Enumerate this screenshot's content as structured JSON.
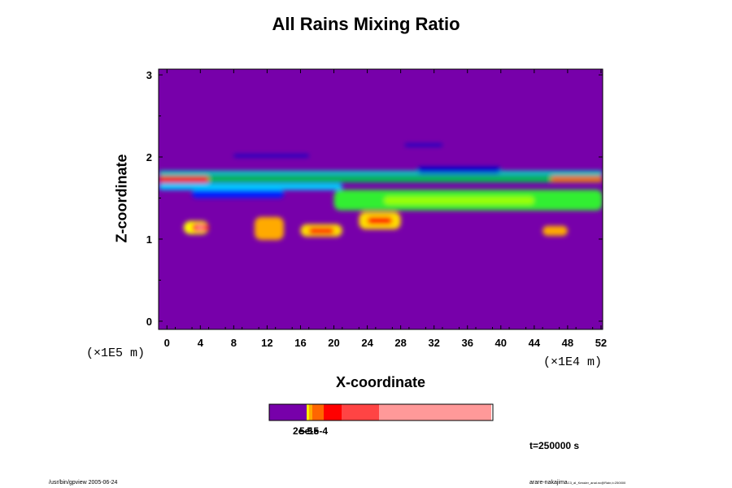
{
  "chart_data": {
    "type": "heatmap",
    "title": "All Rains Mixing Ratio",
    "xlabel": "X-coordinate",
    "ylabel": "Z-coordinate",
    "x_unit": "(×1E4 m)",
    "y_unit": "(×1E5 m)",
    "xlim": [
      -1,
      52.2
    ],
    "ylim": [
      -0.1,
      3.07
    ],
    "x_ticks": [
      "0",
      "4",
      "8",
      "12",
      "16",
      "20",
      "24",
      "28",
      "32",
      "36",
      "40",
      "44",
      "48",
      "52"
    ],
    "x_tick_values": [
      0,
      4,
      8,
      12,
      16,
      20,
      24,
      28,
      32,
      36,
      40,
      44,
      48,
      52
    ],
    "y_ticks": [
      "0",
      "1",
      "2",
      "3"
    ],
    "y_tick_values": [
      0,
      1,
      2,
      3
    ],
    "background_color": "#7700aa",
    "features": [
      {
        "x": [
          -1,
          52.2
        ],
        "y": [
          1.69,
          1.77
        ],
        "level": "#00c050"
      },
      {
        "x": [
          -1,
          5
        ],
        "y": [
          1.69,
          1.76
        ],
        "level": "#ff0000"
      },
      {
        "x": [
          46,
          52.2
        ],
        "y": [
          1.7,
          1.76
        ],
        "level": "#ff6600"
      },
      {
        "x": [
          -1,
          52.2
        ],
        "y": [
          1.78,
          1.83
        ],
        "level": "#00e0c0"
      },
      {
        "x": [
          -1,
          21
        ],
        "y": [
          1.6,
          1.68
        ],
        "level": "#00d0ff"
      },
      {
        "x": [
          3,
          14
        ],
        "y": [
          1.5,
          1.6
        ],
        "level": "#0020ff"
      },
      {
        "x": [
          20,
          52.2
        ],
        "y": [
          1.35,
          1.6
        ],
        "level": "#33ee33"
      },
      {
        "x": [
          26,
          44
        ],
        "y": [
          1.42,
          1.52
        ],
        "level": "#99ff00"
      },
      {
        "x": [
          30,
          40
        ],
        "y": [
          1.8,
          1.88
        ],
        "level": "#0000cc"
      },
      {
        "x": [
          8,
          17
        ],
        "y": [
          2.0,
          2.03
        ],
        "level": "#0000cc"
      },
      {
        "x": [
          2,
          5
        ],
        "y": [
          1.06,
          1.22
        ],
        "level": "#ffff00"
      },
      {
        "x": [
          3,
          5
        ],
        "y": [
          1.09,
          1.19
        ],
        "level": "#ff0000"
      },
      {
        "x": [
          3.5,
          4.5
        ],
        "y": [
          1.12,
          1.16
        ],
        "level": "#ffa0a0"
      },
      {
        "x": [
          10.5,
          14
        ],
        "y": [
          0.99,
          1.27
        ],
        "level": "#ffaa00"
      },
      {
        "x": [
          16,
          21
        ],
        "y": [
          1.03,
          1.18
        ],
        "level": "#ffdd00"
      },
      {
        "x": [
          17,
          20
        ],
        "y": [
          1.06,
          1.14
        ],
        "level": "#ff0000"
      },
      {
        "x": [
          23,
          28
        ],
        "y": [
          1.12,
          1.33
        ],
        "level": "#ffdd00"
      },
      {
        "x": [
          24,
          27
        ],
        "y": [
          1.18,
          1.27
        ],
        "level": "#ff0000"
      },
      {
        "x": [
          45,
          48
        ],
        "y": [
          1.04,
          1.16
        ],
        "level": "#ffaa00"
      },
      {
        "x": [
          28.5,
          33
        ],
        "y": [
          2.13,
          2.16
        ],
        "level": "#0000cc"
      }
    ],
    "colorbar": {
      "colors": [
        "#7700aa",
        "#ffee00",
        "#ffaa00",
        "#ff6600",
        "#ff0000",
        "#ff4444",
        "#ff9999"
      ],
      "tick_labels": [
        "2e-5",
        "5e-5",
        "1e-4"
      ]
    },
    "legend": "none"
  },
  "annotations": {
    "time": "t=250000 s",
    "footer_left": "/usr/bin/gpview 2005-06-24",
    "footer_right": "arare-nakajima",
    "footer_right_small": "C3_aI_Kessler_anal.nc@Rain,t=250000"
  }
}
